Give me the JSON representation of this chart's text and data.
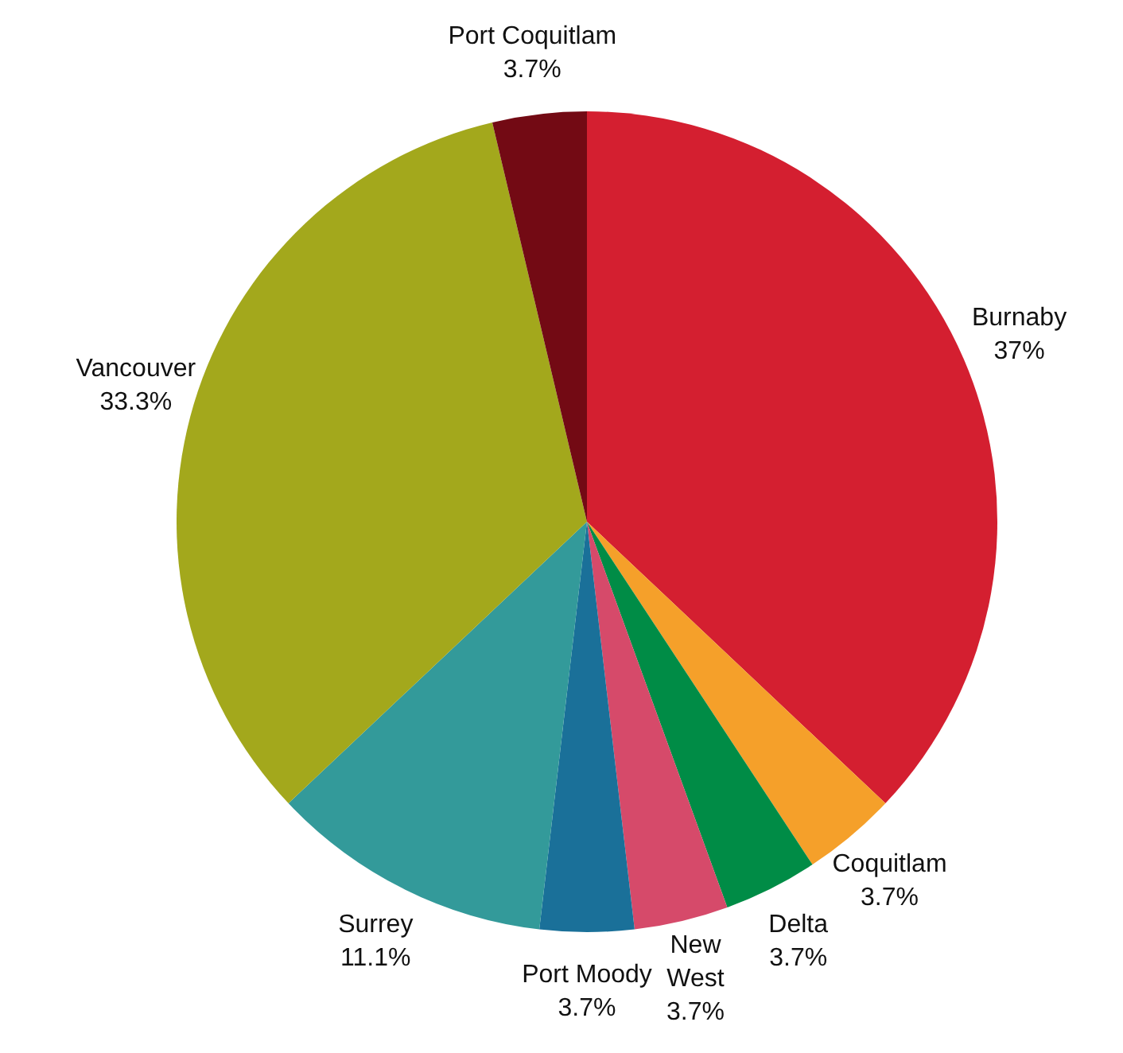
{
  "chart_data": {
    "type": "pie",
    "categories": [
      "Burnaby",
      "Coquitlam",
      "Delta",
      "New\nWest",
      "Port Moody",
      "Surrey",
      "Vancouver",
      "Port Coquitlam"
    ],
    "values": [
      37,
      3.7,
      3.7,
      3.7,
      3.7,
      11.1,
      33.3,
      3.7
    ],
    "value_labels": [
      "37%",
      "3.7%",
      "3.7%",
      "3.7%",
      "3.7%",
      "11.1%",
      "33.3%",
      "3.7%"
    ],
    "colors": [
      "#d41f30",
      "#f5a02a",
      "#008c46",
      "#d64a6a",
      "#1a7099",
      "#339a9a",
      "#a3a81c",
      "#730a14"
    ]
  }
}
